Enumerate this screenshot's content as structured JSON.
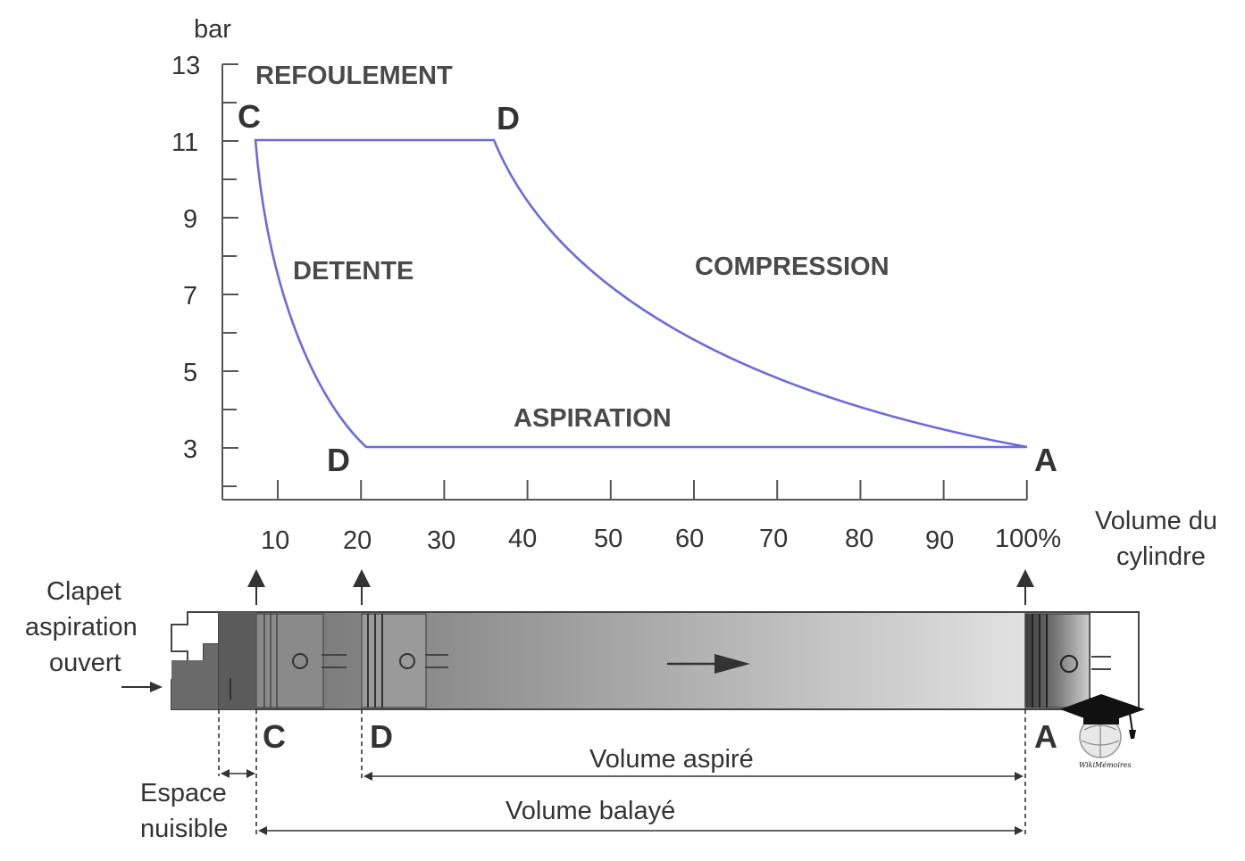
{
  "diagram": {
    "y_unit": "bar",
    "y_ticks": [
      "3",
      "5",
      "7",
      "9",
      "11",
      "13"
    ],
    "x_ticks": [
      "10",
      "20",
      "30",
      "40",
      "50",
      "60",
      "70",
      "80",
      "90",
      "100%"
    ],
    "x_axis_label_line1": "Volume du",
    "x_axis_label_line2": "cylindre",
    "regions": {
      "refoulement": "REFOULEMENT",
      "detente": "DETENTE",
      "compression": "COMPRESSION",
      "aspiration": "ASPIRATION"
    },
    "points": {
      "c_top": "C",
      "d_top": "D",
      "d_bottom": "D",
      "a_right": "A",
      "c_piston": "C",
      "d_piston": "D",
      "a_piston": "A"
    },
    "cycle_color": "#6b6bdc",
    "clapet_line1": "Clapet",
    "clapet_line2": "aspiration",
    "clapet_line3": "ouvert",
    "espace_line1": "Espace",
    "espace_line2": "nuisible",
    "volume_aspire": "Volume aspiré",
    "volume_balaye": "Volume balayé",
    "logo_text": "WikiMémoires"
  }
}
